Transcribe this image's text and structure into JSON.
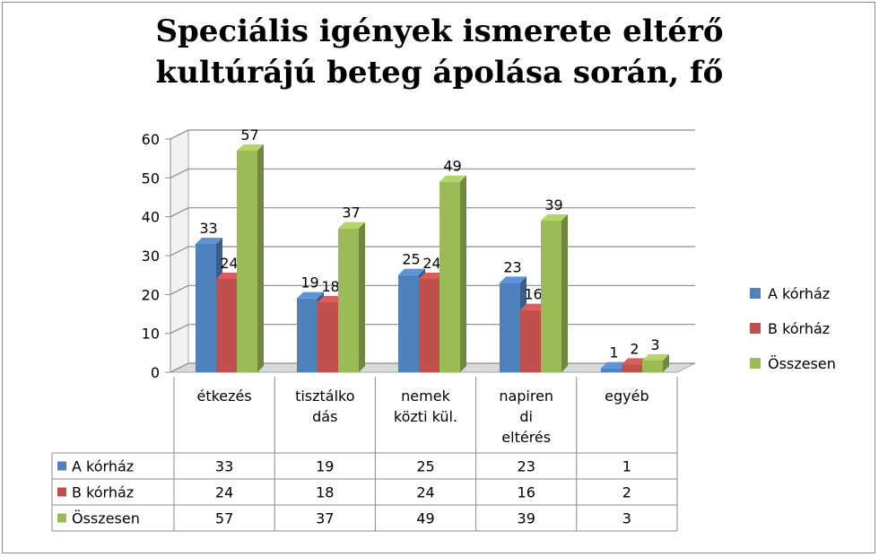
{
  "chart_data": {
    "type": "bar",
    "title_lines": [
      "Speciális igények ismerete eltérő",
      "kultúrájú beteg ápolása során, fő"
    ],
    "categories": [
      "étkezés",
      "tisztálkodás",
      "nemek közti kül.",
      "napirendi eltérés",
      "egyéb"
    ],
    "category_label_lines": [
      [
        "étkezés"
      ],
      [
        "tisztálko",
        "dás"
      ],
      [
        "nemek",
        "közti kül."
      ],
      [
        "napiren",
        "di",
        "eltérés"
      ],
      [
        "egyéb"
      ]
    ],
    "series": [
      {
        "name": "A kórház",
        "values": [
          33,
          19,
          25,
          23,
          1
        ],
        "color": "#4f81bd"
      },
      {
        "name": "B kórház",
        "values": [
          24,
          18,
          24,
          16,
          2
        ],
        "color": "#c0504d"
      },
      {
        "name": "Összesen",
        "values": [
          57,
          37,
          49,
          39,
          3
        ],
        "color": "#9bbb59"
      }
    ],
    "ylim": [
      0,
      60
    ],
    "yticks": [
      0,
      10,
      20,
      30,
      40,
      50,
      60
    ],
    "grid": true,
    "legend_position": "right",
    "data_table": true
  }
}
